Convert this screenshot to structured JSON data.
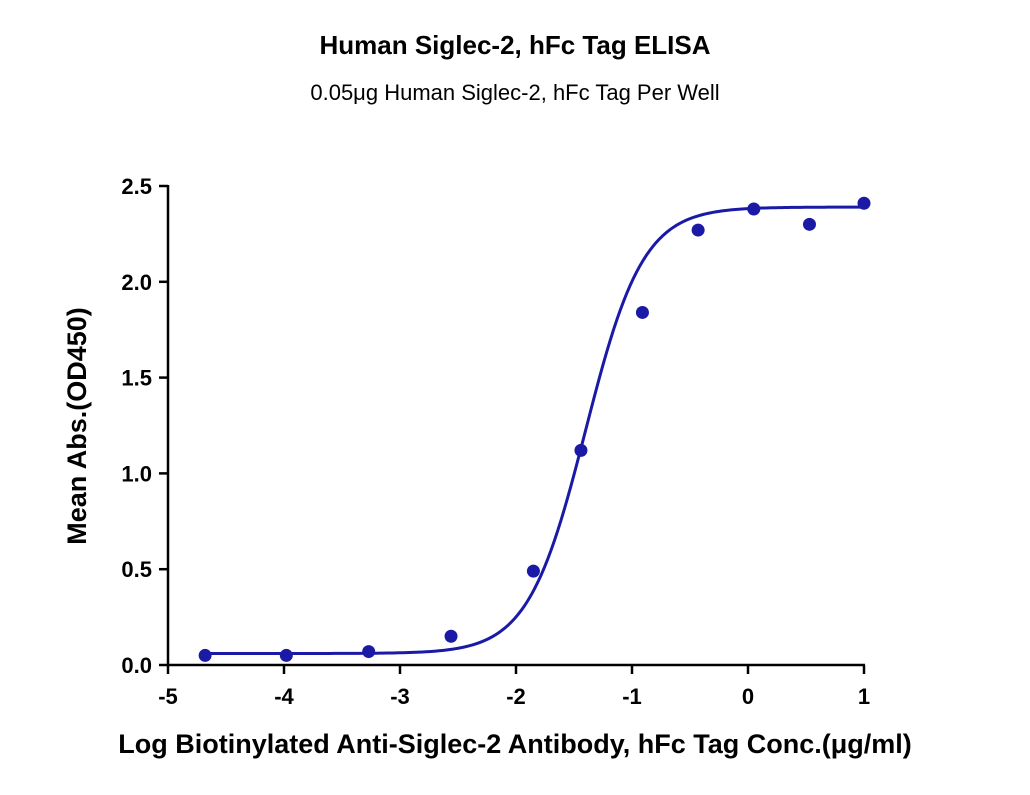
{
  "chart_data": {
    "type": "scatter",
    "title": "Human Siglec-2, hFc Tag ELISA",
    "subtitle": "0.05μg Human Siglec-2, hFc Tag Per Well",
    "xlabel": "Log Biotinylated Anti-Siglec-2 Antibody, hFc Tag Conc.(μg/ml)",
    "ylabel": "Mean Abs.(OD450)",
    "xlim": [
      -5,
      1
    ],
    "ylim": [
      0,
      2.5
    ],
    "xticks": [
      "-5",
      "-4",
      "-3",
      "-2",
      "-1",
      "0",
      "1"
    ],
    "yticks": [
      "0.0",
      "0.5",
      "1.0",
      "1.5",
      "2.0",
      "2.5"
    ],
    "grid": false,
    "color": "#1a1aa6",
    "series": [
      {
        "points": [
          {
            "x": -4.68,
            "y": 0.05
          },
          {
            "x": -3.98,
            "y": 0.05
          },
          {
            "x": -3.27,
            "y": 0.07
          },
          {
            "x": -2.56,
            "y": 0.15
          },
          {
            "x": -1.85,
            "y": 0.49
          },
          {
            "x": -1.44,
            "y": 1.12
          },
          {
            "x": -0.91,
            "y": 1.84
          },
          {
            "x": -0.43,
            "y": 2.27
          },
          {
            "x": 0.05,
            "y": 2.38
          },
          {
            "x": 0.53,
            "y": 2.3
          },
          {
            "x": 1.0,
            "y": 2.41
          }
        ],
        "fit": {
          "bottom": 0.06,
          "top": 2.39,
          "logEC50": -1.4,
          "hill": 1.75
        }
      }
    ]
  }
}
